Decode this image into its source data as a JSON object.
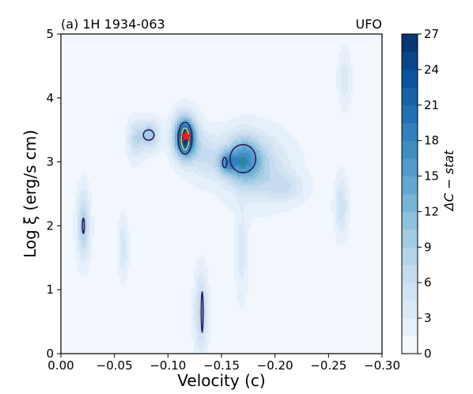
{
  "chart_data": {
    "type": "heatmap",
    "title_left": "(a) 1H 1934-063",
    "title_right": "UFO",
    "xlabel": "Velocity (c)",
    "ylabel": "Log ξ (erg/s cm)",
    "colorbar_label": "ΔC − stat",
    "xlim": [
      0.0,
      -0.3
    ],
    "ylim": [
      0,
      5
    ],
    "x_ticks": [
      0.0,
      -0.05,
      -0.1,
      -0.15,
      -0.2,
      -0.25,
      -0.3
    ],
    "x_tick_labels": [
      "0.00",
      "−0.05",
      "−0.10",
      "−0.15",
      "−0.20",
      "−0.25",
      "−0.30"
    ],
    "y_ticks": [
      0,
      1,
      2,
      3,
      4,
      5
    ],
    "y_tick_labels": [
      "0",
      "1",
      "2",
      "3",
      "4",
      "5"
    ],
    "colorbar_range": [
      0,
      27
    ],
    "colorbar_ticks": [
      0,
      3,
      6,
      9,
      12,
      15,
      18,
      21,
      24,
      27
    ],
    "colorbar_tick_labels": [
      "0",
      "3",
      "6",
      "9",
      "12",
      "15",
      "18",
      "21",
      "24",
      "27"
    ],
    "colormap": "Blues",
    "grid": false,
    "features": [
      {
        "vel": -0.116,
        "logxi": 3.38,
        "sx": 0.007,
        "sy": 0.22,
        "amp": 26
      },
      {
        "vel": -0.17,
        "logxi": 3.05,
        "sx": 0.012,
        "sy": 0.25,
        "amp": 13
      },
      {
        "vel": -0.155,
        "logxi": 2.98,
        "sx": 0.006,
        "sy": 0.12,
        "amp": 9
      },
      {
        "vel": -0.185,
        "logxi": 2.9,
        "sx": 0.02,
        "sy": 0.35,
        "amp": 6
      },
      {
        "vel": -0.083,
        "logxi": 3.42,
        "sx": 0.006,
        "sy": 0.15,
        "amp": 9
      },
      {
        "vel": -0.07,
        "logxi": 3.35,
        "sx": 0.005,
        "sy": 0.2,
        "amp": 6
      },
      {
        "vel": -0.021,
        "logxi": 2.0,
        "sx": 0.004,
        "sy": 0.35,
        "amp": 8
      },
      {
        "vel": -0.131,
        "logxi": 0.65,
        "sx": 0.004,
        "sy": 0.4,
        "amp": 7
      },
      {
        "vel": -0.169,
        "logxi": 1.6,
        "sx": 0.004,
        "sy": 0.5,
        "amp": 3
      },
      {
        "vel": -0.262,
        "logxi": 2.3,
        "sx": 0.004,
        "sy": 0.3,
        "amp": 5
      },
      {
        "vel": -0.265,
        "logxi": 4.3,
        "sx": 0.004,
        "sy": 0.3,
        "amp": 3
      },
      {
        "vel": -0.058,
        "logxi": 1.65,
        "sx": 0.003,
        "sy": 0.3,
        "amp": 4
      },
      {
        "vel": -0.21,
        "logxi": 2.6,
        "sx": 0.012,
        "sy": 0.15,
        "amp": 4
      },
      {
        "vel": -0.135,
        "logxi": 3.1,
        "sx": 0.01,
        "sy": 0.25,
        "amp": 5
      }
    ],
    "contours": [
      {
        "vel": -0.116,
        "logxi": 3.37,
        "rx": 0.0065,
        "ry": 0.25,
        "color": "#2e1b5e"
      },
      {
        "vel": -0.116,
        "logxi": 3.36,
        "rx": 0.0035,
        "ry": 0.17,
        "color": "#b8d84a"
      },
      {
        "vel": -0.17,
        "logxi": 3.05,
        "rx": 0.012,
        "ry": 0.22,
        "color": "#2e1b5e"
      },
      {
        "vel": -0.153,
        "logxi": 2.99,
        "rx": 0.002,
        "ry": 0.08,
        "color": "#2e1b5e"
      },
      {
        "vel": -0.082,
        "logxi": 3.42,
        "rx": 0.005,
        "ry": 0.08,
        "color": "#2e1b5e"
      },
      {
        "vel": -0.021,
        "logxi": 2.0,
        "rx": 0.0008,
        "ry": 0.12,
        "color": "#2e1b5e"
      },
      {
        "vel": -0.132,
        "logxi": 0.65,
        "rx": 0.0008,
        "ry": 0.32,
        "color": "#2e1b5e"
      },
      {
        "vel": -0.17,
        "logxi": 3.0,
        "rx": 0.0008,
        "ry": 0.08,
        "color": "#2e8b7a"
      }
    ],
    "best_fit_marker": {
      "vel": -0.117,
      "logxi": 3.4,
      "color": "#ff1a1a"
    }
  }
}
